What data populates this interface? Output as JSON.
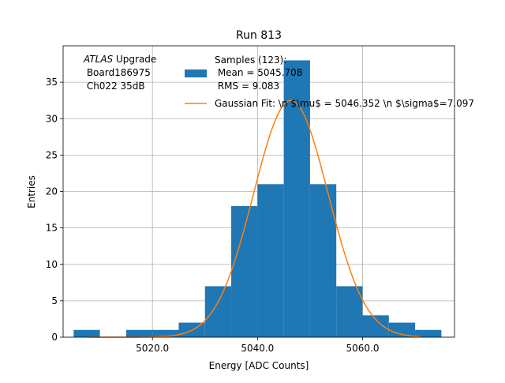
{
  "chart_data": {
    "type": "bar",
    "title": "Run 813",
    "xlabel": "Energy [ADC Counts]",
    "ylabel": "Entries",
    "xlim": [
      5003,
      5077.5
    ],
    "ylim": [
      0,
      40
    ],
    "grid": true,
    "legend_placement": "top-center",
    "bins": [
      {
        "x0": 5005,
        "x1": 5010,
        "count": 1
      },
      {
        "x0": 5010,
        "x1": 5015,
        "count": 0
      },
      {
        "x0": 5015,
        "x1": 5020,
        "count": 1
      },
      {
        "x0": 5020,
        "x1": 5025,
        "count": 1
      },
      {
        "x0": 5025,
        "x1": 5030,
        "count": 2
      },
      {
        "x0": 5030,
        "x1": 5035,
        "count": 7
      },
      {
        "x0": 5035,
        "x1": 5040,
        "count": 18
      },
      {
        "x0": 5040,
        "x1": 5045,
        "count": 21
      },
      {
        "x0": 5045,
        "x1": 5050,
        "count": 38
      },
      {
        "x0": 5050,
        "x1": 5055,
        "count": 21
      },
      {
        "x0": 5055,
        "x1": 5060,
        "count": 7
      },
      {
        "x0": 5060,
        "x1": 5065,
        "count": 3
      },
      {
        "x0": 5065,
        "x1": 5070,
        "count": 2
      },
      {
        "x0": 5070,
        "x1": 5075,
        "count": 1
      }
    ],
    "fit": {
      "mean": 5046.352,
      "sigma": 7.097,
      "amplitude": 32.5,
      "x_range": [
        5008,
        5071
      ]
    },
    "x_ticks": [
      5020,
      5040,
      5060
    ],
    "x_tick_labels": [
      "5020.0",
      "5040.0",
      "5060.0"
    ],
    "y_ticks": [
      0,
      5,
      10,
      15,
      20,
      25,
      30,
      35
    ],
    "y_tick_labels": [
      "0",
      "5",
      "10",
      "15",
      "20",
      "25",
      "30",
      "35"
    ],
    "legend": {
      "hist_lines": [
        "Samples (123):",
        " Mean = 5045.708",
        " RMS = 9.083"
      ],
      "fit_line": "Gaussian Fit: \\n $\\mu$ = 5046.352 \\n $\\sigma$=7.097"
    },
    "annotation": {
      "line1_italic": "ATLAS",
      "line1_rest": " Upgrade",
      "line2": " Board186975",
      "line3": " Ch022 35dB"
    },
    "colors": {
      "hist": "#1f77b4",
      "fit": "#ff7f0e",
      "grid": "#b0b0b0"
    }
  }
}
